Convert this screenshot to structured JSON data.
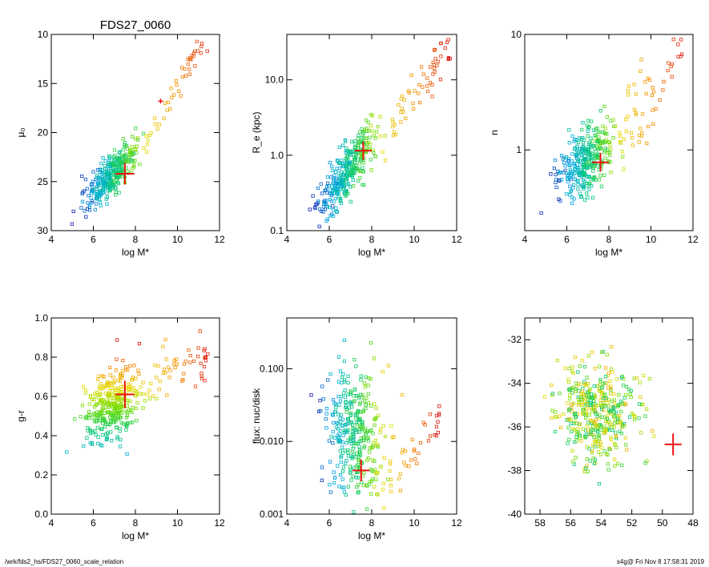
{
  "title": "FDS27_0060",
  "footer": {
    "path": "/wrk/fds2_hs/FDS27_0060_scale_relation",
    "stamp": "s4g@  Fri Nov  8 17:58:31 2019"
  },
  "colors": {
    "marker": "#ee1111",
    "axis": "#000000"
  },
  "chart_data": [
    {
      "id": "mu0",
      "type": "scatter",
      "title": "FDS27_0060",
      "xlabel": "log M*",
      "ylabel": "μ₀",
      "xlim": [
        4,
        12
      ],
      "ylim": [
        30,
        10
      ],
      "yscale": "linear",
      "xticks": [
        "4",
        "6",
        "8",
        "10",
        "12"
      ],
      "yticks": [
        "10",
        "15",
        "20",
        "25",
        "30"
      ],
      "cloud": {
        "x_mean": 6.9,
        "x_sd": 0.85,
        "xy_slope": -2.0,
        "y_at_7": 23.9,
        "y_sd": 1.0,
        "tail_x": [
          8.5,
          11.6
        ],
        "tail_y": [
          20.5,
          9.5
        ]
      },
      "marker": {
        "x": 7.5,
        "y": 24.2,
        "xerr": 0.45,
        "yerr": 1.1
      },
      "extra_marker": {
        "x": 9.2,
        "y": 16.8
      }
    },
    {
      "id": "re",
      "type": "scatter",
      "xlabel": "log M*",
      "ylabel": "R_e (kpc)",
      "xlim": [
        4,
        12
      ],
      "ylim": [
        0.1,
        40
      ],
      "yscale": "log",
      "xticks": [
        "4",
        "6",
        "8",
        "10",
        "12"
      ],
      "yticks": [
        "0.1",
        "1.0",
        "10.0"
      ],
      "cloud": {
        "x_mean": 6.9,
        "x_sd": 0.85,
        "log_slope": 0.33,
        "log_y_at_7": -0.15,
        "log_sd": 0.18,
        "tail_x": [
          8.5,
          11.7
        ],
        "tail_log_y": [
          0.2,
          1.45
        ]
      },
      "marker": {
        "x": 7.6,
        "y": 1.15,
        "xerr": 0.4,
        "log_err": 0.12
      }
    },
    {
      "id": "n",
      "type": "scatter",
      "xlabel": "log M*",
      "ylabel": "n",
      "xlim": [
        4,
        12
      ],
      "ylim": [
        0.2,
        10
      ],
      "yscale": "log",
      "xticks": [
        "4",
        "6",
        "8",
        "10",
        "12"
      ],
      "yticks": [
        "1",
        "10"
      ],
      "cloud": {
        "x_mean": 6.9,
        "x_sd": 0.85,
        "log_slope": 0.12,
        "log_y_at_7": -0.07,
        "log_sd": 0.14,
        "tail_x": [
          8.5,
          11.6
        ],
        "tail_log_y": [
          0.1,
          0.85
        ]
      },
      "marker": {
        "x": 7.6,
        "y": 0.78,
        "xerr": 0.4,
        "log_err": 0.08
      }
    },
    {
      "id": "gr",
      "type": "scatter",
      "xlabel": "log M*",
      "ylabel": "g-r",
      "xlim": [
        4,
        12
      ],
      "ylim": [
        0.0,
        1.0
      ],
      "yscale": "linear",
      "xticks": [
        "4",
        "6",
        "8",
        "10",
        "12"
      ],
      "yticks": [
        "0.0",
        "0.2",
        "0.4",
        "0.6",
        "0.8",
        "1.0"
      ],
      "cloud": {
        "x_mean": 6.9,
        "x_sd": 0.85,
        "xy_slope": 0.04,
        "y_at_7": 0.56,
        "y_sd": 0.09,
        "tail_x": [
          8.5,
          11.6
        ],
        "tail_y": [
          0.65,
          0.85
        ]
      },
      "marker": {
        "x": 7.5,
        "y": 0.61,
        "xerr": 0.45,
        "yerr": 0.07
      }
    },
    {
      "id": "flux",
      "type": "scatter",
      "xlabel": "log M*",
      "ylabel": "flux: nuc/disk",
      "xlim": [
        4,
        12
      ],
      "ylim": [
        0.001,
        0.5
      ],
      "yscale": "log",
      "xticks": [
        "4",
        "6",
        "8",
        "10",
        "12"
      ],
      "yticks": [
        "0.001",
        "0.010",
        "0.100"
      ],
      "cloud": {
        "x_mean": 7.2,
        "x_sd": 0.9,
        "log_slope": 0.0,
        "log_y_at_7": -1.9,
        "log_sd": 0.45,
        "tail_x": [
          8.5,
          11.2
        ],
        "tail_log_y": [
          -2.6,
          -1.7
        ]
      },
      "marker": {
        "x": 7.5,
        "y": 0.004,
        "xerr": 0.4,
        "log_err": 0.15
      }
    },
    {
      "id": "pos",
      "type": "scatter",
      "xlabel": "",
      "ylabel": "",
      "xlim": [
        59,
        48
      ],
      "ylim": [
        -40,
        -31
      ],
      "yscale": "linear",
      "xticks": [
        "58",
        "56",
        "54",
        "52",
        "50",
        "48"
      ],
      "yticks": [
        "-40",
        "-38",
        "-36",
        "-34",
        "-32"
      ],
      "cloud": {
        "x_mean": 54.3,
        "x_sd": 1.7,
        "xy_slope": 0.0,
        "y_at_7": -35.4,
        "y_sd": 1.1
      },
      "marker": {
        "x": 49.3,
        "y": -36.8,
        "xerr": 0.55,
        "yerr": 0.5
      }
    }
  ]
}
